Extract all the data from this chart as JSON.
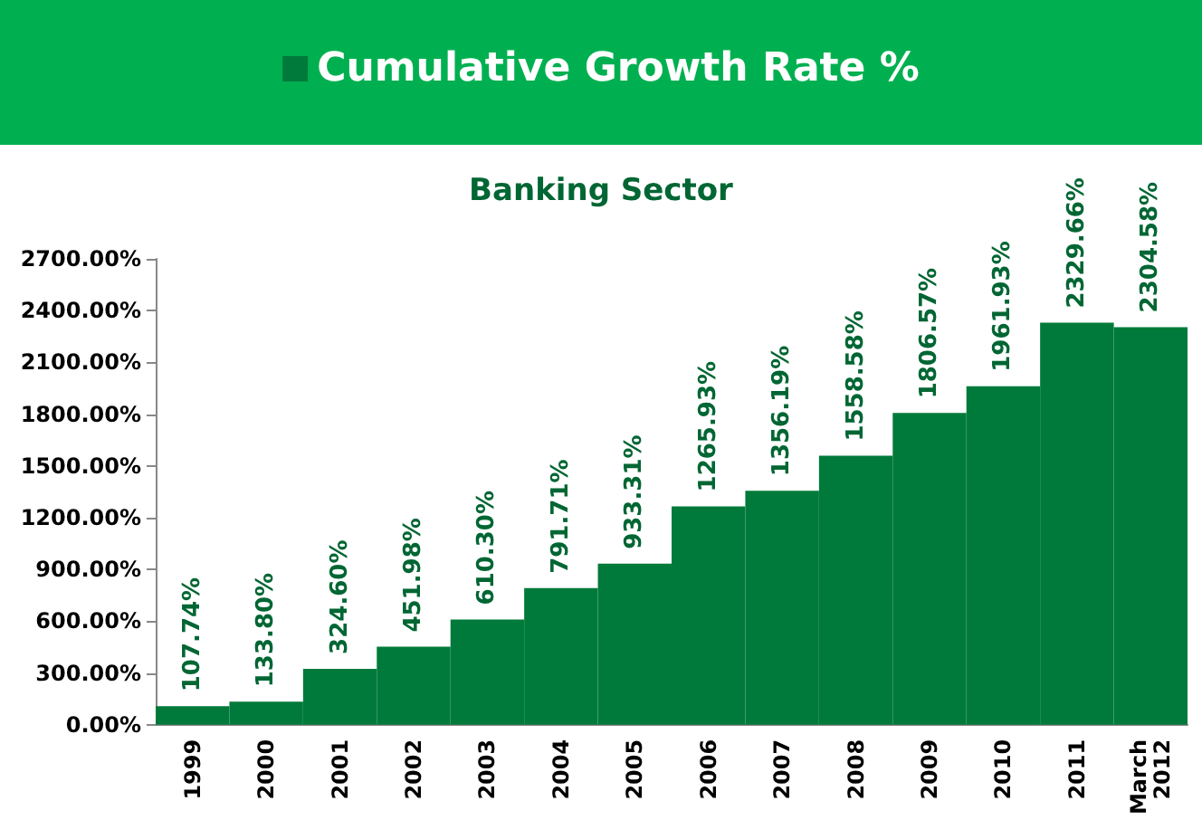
{
  "chart_data": {
    "type": "bar",
    "title": "Banking Sector",
    "categories": [
      "1999",
      "2000",
      "2001",
      "2002",
      "2003",
      "2004",
      "2005",
      "2006",
      "2007",
      "2008",
      "2009",
      "2010",
      "2011",
      "March 2012"
    ],
    "series": [
      {
        "name": "Cumulative Growth Rate %",
        "color": "#007a3a",
        "values": [
          107.74,
          133.8,
          324.6,
          451.98,
          610.3,
          791.71,
          933.31,
          1265.93,
          1356.19,
          1558.58,
          1806.57,
          1961.93,
          2329.66,
          2304.58
        ],
        "value_labels": [
          "107.74%",
          "133.80%",
          "324.60%",
          "451.98%",
          "610.30%",
          "791.71%",
          "933.31%",
          "1265.93%",
          "1356.19%",
          "1558.58%",
          "1806.57%",
          "1961.93%",
          "2329.66%",
          "2304.58%"
        ]
      }
    ],
    "ylim": [
      0,
      2700
    ],
    "yticks": [
      {
        "value": 0,
        "label": "0.00%"
      },
      {
        "value": 300,
        "label": "300.00%"
      },
      {
        "value": 600,
        "label": "600.00%"
      },
      {
        "value": 900,
        "label": "900.00%"
      },
      {
        "value": 1200,
        "label": "1200.00%"
      },
      {
        "value": 1500,
        "label": "1500.00%"
      },
      {
        "value": 1800,
        "label": "1800.00%"
      },
      {
        "value": 2100,
        "label": "2100.00%"
      },
      {
        "value": 2400,
        "label": "2400.00%"
      },
      {
        "value": 2700,
        "label": "2700.00%"
      }
    ],
    "grid": false,
    "legend": "top"
  }
}
